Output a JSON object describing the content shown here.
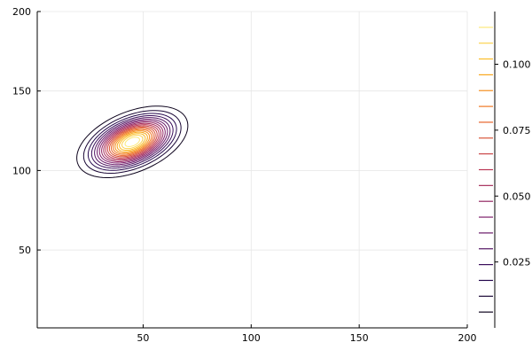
{
  "chart_data": {
    "type": "contour",
    "title": "",
    "xlabel": "",
    "ylabel": "",
    "xlim": [
      1,
      200
    ],
    "ylim": [
      1,
      200
    ],
    "x_ticks": [
      50,
      100,
      150,
      200
    ],
    "y_ticks": [
      50,
      100,
      150,
      200
    ],
    "grid": true,
    "legend": "none",
    "distribution": {
      "kind": "bivariate-gaussian",
      "mean": [
        45,
        118
      ],
      "std": [
        10.5,
        9.2
      ],
      "correlation": 0.45,
      "peak_density": 0.12
    },
    "contour_levels": [
      0.006,
      0.012,
      0.018,
      0.024,
      0.03,
      0.036,
      0.042,
      0.048,
      0.054,
      0.06,
      0.066,
      0.072,
      0.078,
      0.084,
      0.09,
      0.096,
      0.102,
      0.108,
      0.114
    ],
    "colorbar": {
      "ticks": [
        0.025,
        0.05,
        0.075,
        0.1
      ],
      "tick_labels": [
        "0.025",
        "0.050",
        "0.075",
        "0.100"
      ],
      "range": [
        0,
        0.12
      ],
      "colormap": "inferno",
      "colors": [
        "#000004",
        "#2b0b57",
        "#781c6d",
        "#bb3755",
        "#ed6925",
        "#fbb61a",
        "#fcffa4"
      ]
    }
  }
}
